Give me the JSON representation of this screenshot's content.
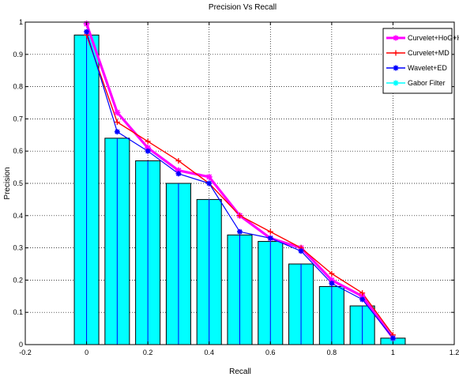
{
  "chart_data": {
    "type": "bar",
    "title": "Precision Vs Recall",
    "xlabel": "Recall",
    "ylabel": "Precision",
    "xlim": [
      -0.2,
      1.2
    ],
    "ylim": [
      0,
      1
    ],
    "xticks": [
      "-0.2",
      "0",
      "0.2",
      "0.4",
      "0.6",
      "0.8",
      "1",
      "1.2"
    ],
    "yticks": [
      "0",
      "0.1",
      "0.2",
      "0.3",
      "0.4",
      "0.5",
      "0.6",
      "0.7",
      "0.8",
      "0.9",
      "1"
    ],
    "grid": true,
    "legend_position": "top-right",
    "x": [
      0,
      0.1,
      0.2,
      0.3,
      0.4,
      0.5,
      0.6,
      0.7,
      0.8,
      0.9,
      1.0
    ],
    "bars": {
      "name": "Gabor Filter",
      "values": [
        0.96,
        0.64,
        0.57,
        0.5,
        0.45,
        0.34,
        0.32,
        0.25,
        0.18,
        0.12,
        0.02
      ],
      "color": "#00ffff"
    },
    "series": [
      {
        "name": "Curvelet+HoG+HTF",
        "color": "#ff00ff",
        "marker": "star",
        "values": [
          0.995,
          0.72,
          0.61,
          0.54,
          0.52,
          0.4,
          0.33,
          0.3,
          0.2,
          0.15,
          0.02
        ]
      },
      {
        "name": "Curvelet+MD",
        "color": "#ff0000",
        "marker": "plus",
        "values": [
          0.96,
          0.69,
          0.63,
          0.57,
          0.5,
          0.4,
          0.35,
          0.3,
          0.22,
          0.16,
          0.03
        ]
      },
      {
        "name": "Wavelet+ED",
        "color": "#0000ff",
        "marker": "star",
        "values": [
          0.97,
          0.66,
          0.6,
          0.53,
          0.5,
          0.35,
          0.33,
          0.29,
          0.19,
          0.14,
          0.02
        ]
      }
    ]
  }
}
